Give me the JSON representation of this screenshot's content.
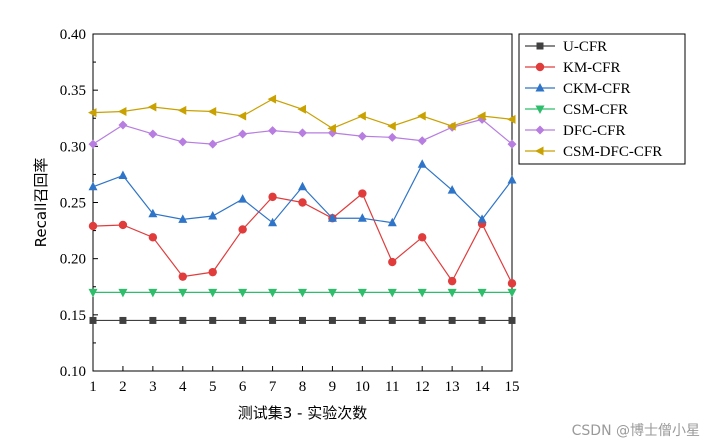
{
  "chart_data": {
    "type": "line",
    "xlabel": "测试集3 - 实验次数",
    "ylabel": "Recall召回率",
    "x": [
      1,
      2,
      3,
      4,
      5,
      6,
      7,
      8,
      9,
      10,
      11,
      12,
      13,
      14,
      15
    ],
    "xlim": [
      1,
      15
    ],
    "ylim": [
      0.1,
      0.4
    ],
    "yticks": [
      "0.10",
      "0.15",
      "0.20",
      "0.25",
      "0.30",
      "0.35",
      "0.40"
    ],
    "grid": false,
    "legend_position": "top-right",
    "series": [
      {
        "name": "U-CFR",
        "color": "#404040",
        "marker": "square",
        "values": [
          0.145,
          0.145,
          0.145,
          0.145,
          0.145,
          0.145,
          0.145,
          0.145,
          0.145,
          0.145,
          0.145,
          0.145,
          0.145,
          0.145,
          0.145
        ]
      },
      {
        "name": "KM-CFR",
        "color": "#e03c3c",
        "marker": "circle",
        "values": [
          0.229,
          0.23,
          0.219,
          0.184,
          0.188,
          0.226,
          0.255,
          0.25,
          0.236,
          0.258,
          0.197,
          0.219,
          0.18,
          0.231,
          0.178
        ]
      },
      {
        "name": "CKM-CFR",
        "color": "#2e74c8",
        "marker": "triangle-up",
        "values": [
          0.264,
          0.274,
          0.24,
          0.235,
          0.238,
          0.253,
          0.232,
          0.264,
          0.236,
          0.236,
          0.232,
          0.284,
          0.261,
          0.235,
          0.27
        ]
      },
      {
        "name": "CSM-CFR",
        "color": "#2ebd6b",
        "marker": "triangle-down",
        "values": [
          0.17,
          0.17,
          0.17,
          0.17,
          0.17,
          0.17,
          0.17,
          0.17,
          0.17,
          0.17,
          0.17,
          0.17,
          0.17,
          0.17,
          0.17
        ]
      },
      {
        "name": "DFC-CFR",
        "color": "#b77de0",
        "marker": "diamond",
        "values": [
          0.302,
          0.319,
          0.311,
          0.304,
          0.302,
          0.311,
          0.314,
          0.312,
          0.312,
          0.309,
          0.308,
          0.305,
          0.317,
          0.324,
          0.302
        ]
      },
      {
        "name": "CSM-DFC-CFR",
        "color": "#c9a100",
        "marker": "triangle-left",
        "values": [
          0.33,
          0.331,
          0.335,
          0.332,
          0.331,
          0.327,
          0.342,
          0.333,
          0.316,
          0.327,
          0.318,
          0.327,
          0.318,
          0.327,
          0.324
        ]
      }
    ]
  },
  "watermark": "CSDN @博士僧小星"
}
